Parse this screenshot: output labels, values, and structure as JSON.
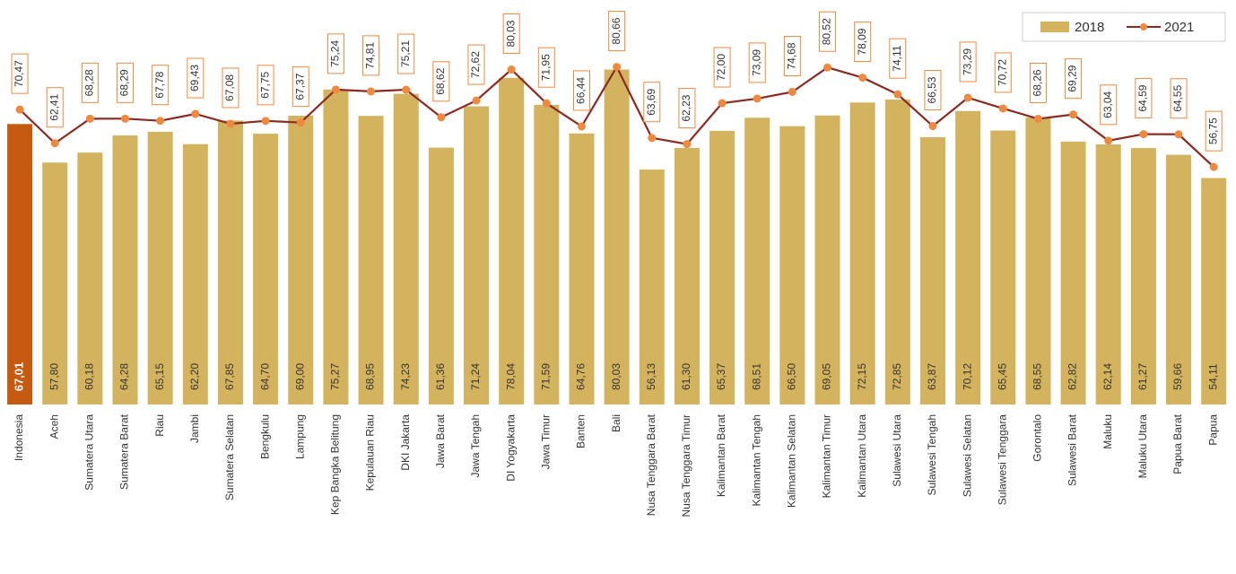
{
  "chart_data": {
    "type": "bar_line",
    "categories": [
      "Indonesia",
      "Aceh",
      "Sumatera Utara",
      "Sumatera Barat",
      "Riau",
      "Jambi",
      "Sumatera Selatan",
      "Bengkulu",
      "Lampung",
      "Kep Bangka Belitung",
      "Kepulauan Riau",
      "DKI Jakarta",
      "Jawa Barat",
      "Jawa Tengah",
      "DI Yogyakarta",
      "Jawa Timur",
      "Banten",
      "Bali",
      "Nusa Tenggara Barat",
      "Nusa Tenggara Timur",
      "Kalimantan Barat",
      "Kalimantan Tengah",
      "Kalimantan Selatan",
      "Kalimantan Timur",
      "Kalimantan Utara",
      "Sulawesi Utara",
      "Sulawesi Tengah",
      "Sulawesi Selatan",
      "Sulawesi Tenggara",
      "Gorontalo",
      "Sulawesi Barat",
      "Maluku",
      "Maluku Utara",
      "Papua Barat",
      "Papua"
    ],
    "ylim": [
      0,
      96
    ],
    "legend": "top-right",
    "series": [
      {
        "name": "2018",
        "type": "bar",
        "color": "#d4b35e",
        "colors": [
          "#c55a11",
          "#d4b35e",
          "#d4b35e",
          "#d4b35e",
          "#d4b35e",
          "#d4b35e",
          "#d4b35e",
          "#d4b35e",
          "#d4b35e",
          "#d4b35e",
          "#d4b35e",
          "#d4b35e",
          "#d4b35e",
          "#d4b35e",
          "#d4b35e",
          "#d4b35e",
          "#d4b35e",
          "#d4b35e",
          "#d4b35e",
          "#d4b35e",
          "#d4b35e",
          "#d4b35e",
          "#d4b35e",
          "#d4b35e",
          "#d4b35e",
          "#d4b35e",
          "#d4b35e",
          "#d4b35e",
          "#d4b35e",
          "#d4b35e",
          "#d4b35e",
          "#d4b35e",
          "#d4b35e",
          "#d4b35e",
          "#d4b35e"
        ],
        "values": [
          67.01,
          57.8,
          60.18,
          64.28,
          65.15,
          62.2,
          67.85,
          64.7,
          69.0,
          75.27,
          68.95,
          74.23,
          61.36,
          71.24,
          78.04,
          71.59,
          64.76,
          80.03,
          56.13,
          61.3,
          65.37,
          68.51,
          66.5,
          69.05,
          72.15,
          72.85,
          63.87,
          70.12,
          65.45,
          68.55,
          62.82,
          62.14,
          61.27,
          59.66,
          54.11
        ],
        "value_labels": [
          "67,01",
          "57,80",
          "60,18",
          "64,28",
          "65,15",
          "62,20",
          "67,85",
          "64,70",
          "69,00",
          "75,27",
          "68,95",
          "74,23",
          "61,36",
          "71,24",
          "78,04",
          "71,59",
          "64,76",
          "80,03",
          "56,13",
          "61,30",
          "65,37",
          "68,51",
          "66,50",
          "69,05",
          "72,15",
          "72,85",
          "63,87",
          "70,12",
          "65,45",
          "68,55",
          "62,82",
          "62,14",
          "61,27",
          "59,66",
          "54,11"
        ]
      },
      {
        "name": "2021",
        "type": "line",
        "color": "#8b2a22",
        "marker_color": "#ee8a40",
        "values": [
          70.47,
          62.41,
          68.28,
          68.29,
          67.78,
          69.43,
          67.08,
          67.75,
          67.37,
          75.24,
          74.81,
          75.21,
          68.62,
          72.62,
          80.03,
          71.95,
          66.44,
          80.66,
          63.69,
          62.23,
          72.0,
          73.09,
          74.68,
          80.52,
          78.09,
          74.11,
          66.53,
          73.29,
          70.72,
          68.26,
          69.29,
          63.04,
          64.59,
          64.55,
          56.75
        ],
        "value_labels": [
          "70,47",
          "62,41",
          "68,28",
          "68,29",
          "67,78",
          "69,43",
          "67,08",
          "67,75",
          "67,37",
          "75,24",
          "74,81",
          "75,21",
          "68,62",
          "72,62",
          "80,03",
          "71,95",
          "66,44",
          "80,66",
          "63,69",
          "62,23",
          "72,00",
          "73,09",
          "74,68",
          "80,52",
          "78,09",
          "74,11",
          "66,53",
          "73,29",
          "70,72",
          "68,26",
          "69,29",
          "63,04",
          "64,59",
          "64,55",
          "56,75"
        ]
      }
    ]
  }
}
